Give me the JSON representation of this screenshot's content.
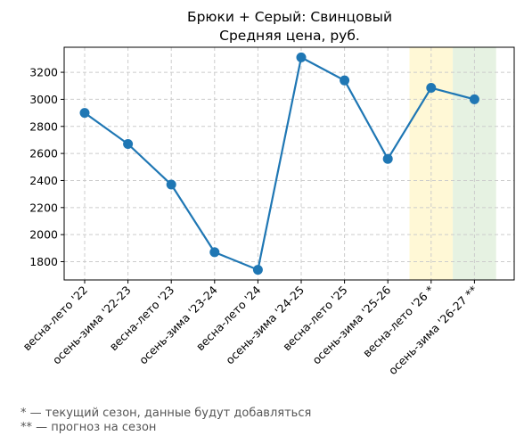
{
  "chart_data": {
    "type": "line",
    "title": "Брюки + Серый: Свинцовый",
    "subtitle": "Средняя цена, руб.",
    "xlabel": "",
    "ylabel": "",
    "categories": [
      "весна-лето '22",
      "осень-зима '22-23",
      "весна-лето '23",
      "осень-зима '23-24",
      "весна-лето '24",
      "осень-зима '24-25",
      "весна-лето '25",
      "осень-зима '25-26",
      "весна-лето '26 *",
      "осень-зима '26-27 **"
    ],
    "series": [
      {
        "values": [
          2900,
          2670,
          2370,
          1870,
          1740,
          3310,
          3140,
          2560,
          3085,
          3000
        ],
        "color": "#1f77b4"
      }
    ],
    "ylim": [
      1665,
      3385
    ],
    "yticks": [
      1800,
      2000,
      2200,
      2400,
      2600,
      2800,
      3000,
      3200
    ],
    "grid": true,
    "highlights": [
      {
        "category_index": 8,
        "color": "#fff8d6"
      },
      {
        "category_index": 9,
        "color": "#e6f2e2"
      }
    ]
  },
  "footnotes": [
    "* — текущий сезон, данные будут добавляться",
    "** — прогноз на сезон"
  ]
}
